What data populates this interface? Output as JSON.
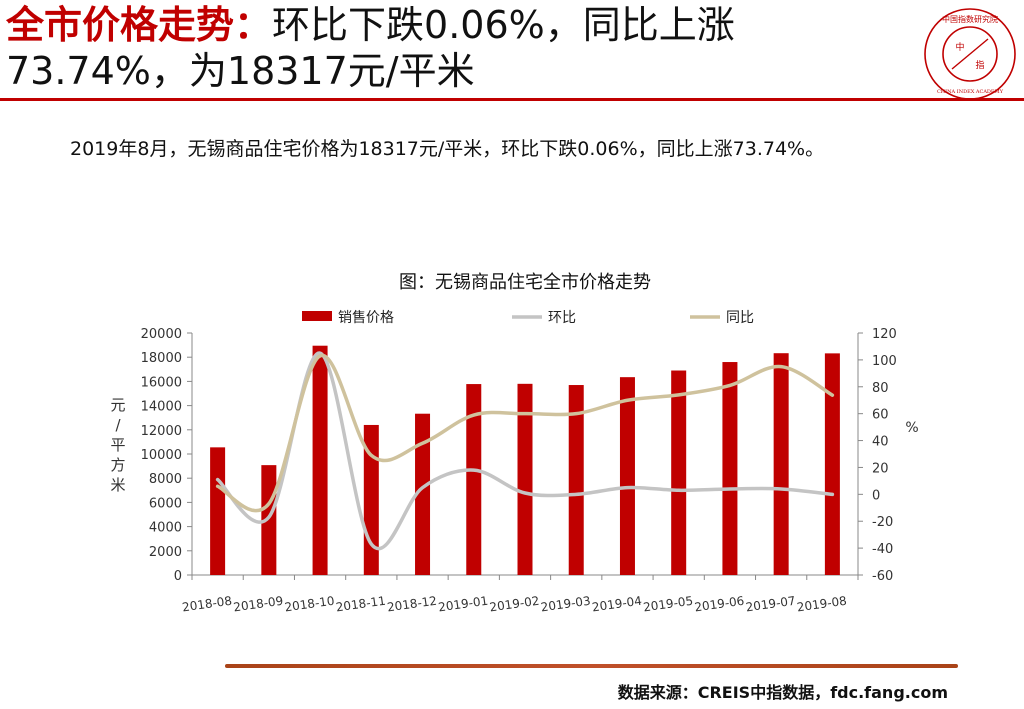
{
  "header": {
    "title_highlight": "全市价格走势：",
    "title_rest": "环比下跌0.06%，同比上涨73.74%，为18317元/平米"
  },
  "logo": {
    "top_text": "中国指数研究院",
    "bottom_text": "CHINA INDEX ACADEMY",
    "center_text": "中 指",
    "accent": "#c00000"
  },
  "summary": "2019年8月，无锡商品住宅价格为18317元/平米，环比下跌0.06%，同比上涨73.74%。",
  "chart_data": {
    "type": "bar",
    "title": "图：无锡商品住宅全市价格走势",
    "categories": [
      "2018-08",
      "2018-09",
      "2018-10",
      "2018-11",
      "2018-12",
      "2019-01",
      "2019-02",
      "2019-03",
      "2019-04",
      "2019-05",
      "2019-06",
      "2019-07",
      "2019-08"
    ],
    "series": [
      {
        "name": "销售价格",
        "kind": "bar",
        "axis": "left",
        "color": "#c00000",
        "values": [
          10550,
          9080,
          18950,
          12400,
          13330,
          15780,
          15800,
          15700,
          16350,
          16900,
          17600,
          18330,
          18317
        ]
      },
      {
        "name": "环比",
        "kind": "line",
        "axis": "right",
        "color": "#c4c4c4",
        "values": [
          11,
          -17,
          105,
          -37,
          5,
          18,
          1,
          0,
          5,
          3,
          4,
          4,
          -0.06
        ]
      },
      {
        "name": "同比",
        "kind": "line",
        "axis": "right",
        "color": "#cfc29d",
        "values": [
          6,
          -7,
          103,
          29,
          38,
          59,
          60,
          60,
          70,
          74,
          81,
          95,
          73.74
        ]
      }
    ],
    "ylabel": "元/平方米",
    "ylabel_right": "%",
    "ylim": [
      0,
      20000
    ],
    "yticks": [
      0,
      2000,
      4000,
      6000,
      8000,
      10000,
      12000,
      14000,
      16000,
      18000,
      20000
    ],
    "ylim_right": [
      -60,
      120
    ],
    "yticks_right": [
      -60,
      -40,
      -20,
      0,
      20,
      40,
      60,
      80,
      100,
      120
    ],
    "legend_position": "top",
    "grid": false
  },
  "footer": {
    "source": "数据来源：CREIS中指数据，fdc.fang.com"
  }
}
